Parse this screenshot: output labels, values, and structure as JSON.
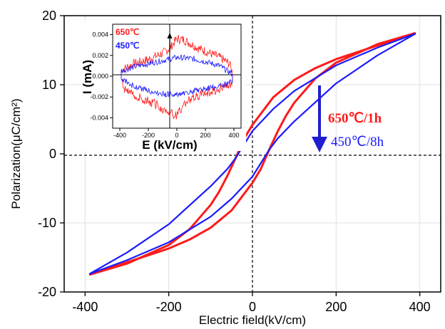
{
  "colors": {
    "series_650": "#ff1a1a",
    "series_450": "#1a1aff",
    "arrow": "#1f1fd0",
    "grid": "#e0e0e0",
    "axis": "#000000"
  },
  "chart_data": [
    {
      "id": "main",
      "type": "line",
      "xlabel": "Electric field(kV/cm)",
      "ylabel": "Polarization(μC/cm²)",
      "xlim": [
        -450,
        450
      ],
      "ylim": [
        -20,
        20
      ],
      "xticks": [
        -400,
        -200,
        0,
        200,
        400
      ],
      "yticks": [
        -20,
        -10,
        0,
        10,
        20
      ],
      "grid": true,
      "series": [
        {
          "name": "650℃/1h",
          "color": "#ff1a1a",
          "upper_branch": {
            "x": [
              -390,
              -300,
              -200,
              -150,
              -100,
              -80,
              -60,
              -40,
              -20,
              0,
              50,
              100,
              150,
              200,
              300,
              390
            ],
            "y": [
              -17.5,
              -15.9,
              -13.2,
              -10.9,
              -7.4,
              -5.5,
              -3.2,
              -0.6,
              2.2,
              4.2,
              8.2,
              10.7,
              12.4,
              13.7,
              15.7,
              17.5
            ]
          },
          "lower_branch": {
            "x": [
              390,
              300,
              200,
              150,
              100,
              80,
              60,
              40,
              20,
              0,
              -50,
              -100,
              -150,
              -200,
              -300,
              -390
            ],
            "y": [
              17.5,
              15.9,
              13.2,
              10.9,
              7.4,
              5.5,
              3.2,
              0.6,
              -2.2,
              -4.2,
              -8.2,
              -10.7,
              -12.4,
              -13.7,
              -15.7,
              -17.5
            ]
          }
        },
        {
          "name": "450℃/8h",
          "color": "#1a1aff",
          "upper_branch": {
            "x": [
              -390,
              -300,
              -200,
              -100,
              -60,
              -40,
              0,
              50,
              100,
              200,
              300,
              390
            ],
            "y": [
              -17.4,
              -14.3,
              -10.2,
              -4.7,
              -2.2,
              -0.6,
              3.3,
              6.5,
              9.1,
              12.8,
              15.4,
              17.4
            ]
          },
          "lower_branch": {
            "x": [
              390,
              300,
              200,
              100,
              60,
              40,
              0,
              -50,
              -100,
              -200,
              -300,
              -390
            ],
            "y": [
              17.4,
              14.3,
              10.2,
              4.7,
              2.2,
              0.6,
              -3.3,
              -6.5,
              -9.1,
              -12.8,
              -15.4,
              -17.4
            ]
          }
        }
      ],
      "annotations": {
        "label_650": "650℃/1h",
        "label_450": "450℃/8h",
        "arrow": "down-arrow"
      }
    },
    {
      "id": "inset",
      "type": "line",
      "xlabel": "E (kV/cm)",
      "ylabel": "I (mA)",
      "xlim": [
        -450,
        450
      ],
      "ylim": [
        -0.005,
        0.005
      ],
      "xticks": [
        -400,
        -200,
        0,
        200,
        400
      ],
      "yticks": [
        -0.004,
        -0.002,
        0.0,
        0.002,
        0.004
      ],
      "ytick_labels": [
        "-0.004",
        "-0.002",
        "0.000",
        "0.002",
        "0.004"
      ],
      "grid": false,
      "legend": {
        "entries": [
          "650℃",
          "450℃"
        ],
        "placement": "top-left"
      },
      "series": [
        {
          "name": "650℃",
          "color": "#ff1a1a",
          "upper_branch": {
            "x": [
              -390,
              -300,
              -200,
              -100,
              -50,
              0,
              50,
              100,
              150,
              200,
              300,
              370,
              390
            ],
            "y": [
              0.0006,
              0.0012,
              0.0016,
              0.0022,
              0.0027,
              0.0036,
              0.0035,
              0.0031,
              0.0027,
              0.0024,
              0.0018,
              0.0012,
              0.0003
            ]
          },
          "lower_branch": {
            "x": [
              390,
              300,
              200,
              100,
              50,
              0,
              -50,
              -100,
              -150,
              -200,
              -300,
              -370,
              -390
            ],
            "y": [
              -0.0006,
              -0.0012,
              -0.0016,
              -0.0022,
              -0.0027,
              -0.0038,
              -0.0035,
              -0.0031,
              -0.0027,
              -0.0024,
              -0.0018,
              -0.0012,
              -0.0003
            ]
          }
        },
        {
          "name": "450℃",
          "color": "#1a1aff",
          "upper_branch": {
            "x": [
              -390,
              -300,
              -200,
              -100,
              0,
              100,
              200,
              300,
              390
            ],
            "y": [
              0.0005,
              0.0009,
              0.0012,
              0.0015,
              0.0018,
              0.0017,
              0.0014,
              0.001,
              0.0002
            ]
          },
          "lower_branch": {
            "x": [
              390,
              300,
              200,
              100,
              0,
              -100,
              -200,
              -300,
              -390
            ],
            "y": [
              -0.0005,
              -0.0009,
              -0.0012,
              -0.0015,
              -0.0018,
              -0.0017,
              -0.0014,
              -0.001,
              -0.0002
            ]
          }
        }
      ]
    }
  ]
}
